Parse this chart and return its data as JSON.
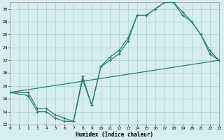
{
  "xlabel": "Humidex (Indice chaleur)",
  "bg_color": "#d6eeed",
  "grid_color": "#b0d0d0",
  "line_color": "#2e7d72",
  "xlim": [
    0,
    23
  ],
  "ylim": [
    12,
    31
  ],
  "xticks": [
    0,
    1,
    2,
    3,
    4,
    5,
    6,
    7,
    8,
    9,
    10,
    11,
    12,
    13,
    14,
    15,
    16,
    17,
    18,
    19,
    20,
    21,
    22,
    23
  ],
  "yticks": [
    12,
    14,
    16,
    18,
    20,
    22,
    24,
    26,
    28,
    30
  ],
  "line1_x": [
    0,
    2,
    3,
    4,
    5,
    6,
    7,
    8,
    9,
    10,
    11,
    12,
    13,
    14,
    15,
    16,
    17,
    18,
    19,
    20,
    21,
    22,
    23
  ],
  "line1_y": [
    17,
    16.5,
    14,
    14,
    13,
    12.5,
    12.5,
    19,
    15,
    21,
    22,
    23,
    25,
    29,
    29,
    30,
    31,
    31,
    29,
    28,
    26,
    23,
    22
  ],
  "line2_x": [
    0,
    2,
    3,
    4,
    5,
    6,
    7,
    8,
    9,
    10,
    11,
    12,
    13,
    14,
    15,
    16,
    17,
    18,
    19,
    20,
    21,
    22,
    23
  ],
  "line2_y": [
    17,
    17,
    14.5,
    14.5,
    13.5,
    13,
    12.5,
    19.5,
    15,
    21,
    22.5,
    23.5,
    25.5,
    29,
    29,
    30,
    31,
    31,
    29.5,
    28,
    26,
    23.5,
    22
  ],
  "line3_x": [
    0,
    23
  ],
  "line3_y": [
    17,
    22
  ],
  "marker_size": 3.5,
  "line_width": 0.9
}
